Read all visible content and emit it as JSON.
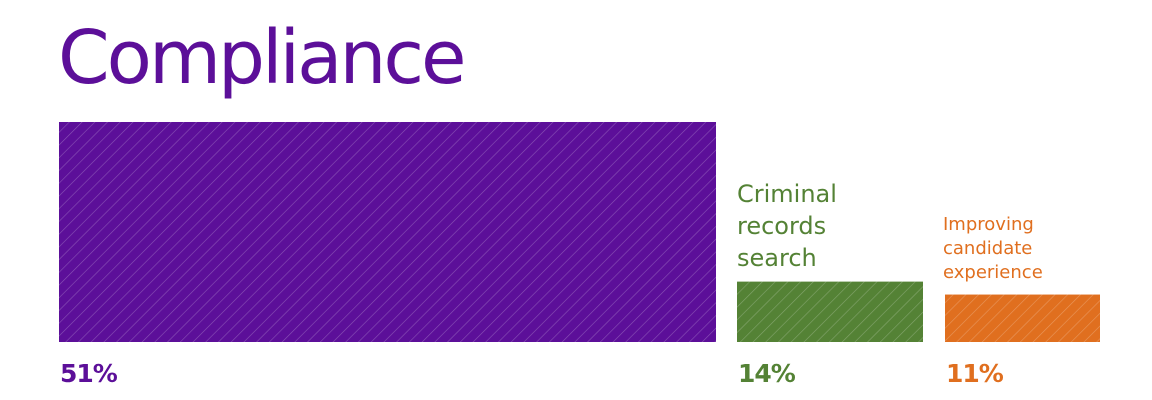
{
  "chart_data": {
    "type": "bar",
    "categories": [
      "Compliance",
      "Criminal records search",
      "Improving candidate experience"
    ],
    "values": [
      51,
      14,
      11
    ],
    "unit": "%",
    "value_labels": [
      "51%",
      "14%",
      "11%"
    ],
    "colors": [
      "#5c0f99",
      "#548235",
      "#e06f1f"
    ],
    "category_labels": {
      "compliance": "Compliance",
      "criminal_line1": "Criminal",
      "criminal_line2": "records",
      "criminal_line3": "search",
      "improving_line1": "Improving",
      "improving_line2": "candidate",
      "improving_line3": "experience"
    },
    "fill_pattern": "diagonal-hatch"
  }
}
